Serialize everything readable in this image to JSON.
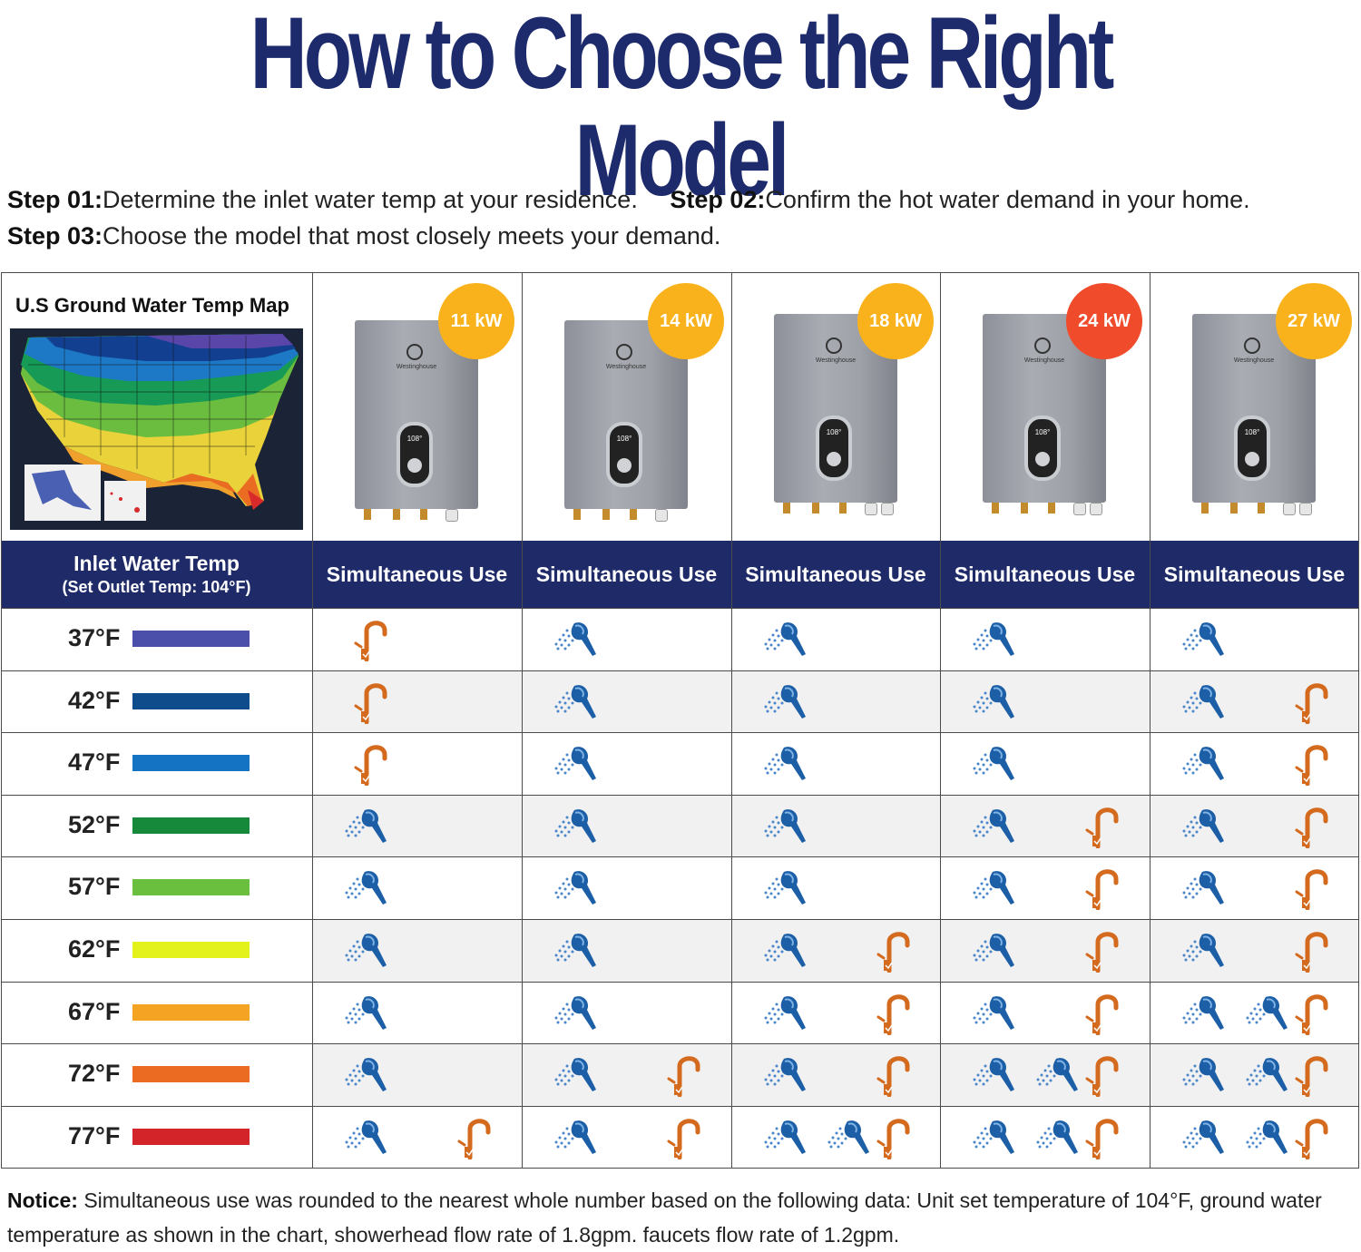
{
  "title": "How to Choose the Right Model",
  "steps": {
    "step1_label": "Step  01:",
    "step1_text": "Determine the inlet water temp at your residence.",
    "step2_label": "Step 02:",
    "step2_text": "Confirm the hot water demand in your home.",
    "step3_label": "Step 03:",
    "step3_text": "Choose the model that most closely meets your demand."
  },
  "map": {
    "heading": "U.S Ground Water Temp Map"
  },
  "header": {
    "inlet_label": "Inlet Water Temp",
    "inlet_sub": "(Set Outlet Temp: 104°F)",
    "use_label": "Simultaneous Use"
  },
  "models": [
    {
      "label": "11 kW",
      "color": "#f9b21b",
      "brand": "Westinghouse",
      "display": "108°"
    },
    {
      "label": "14 kW",
      "color": "#f9b21b",
      "brand": "Westinghouse",
      "display": "108°"
    },
    {
      "label": "18 kW",
      "color": "#f9b21b",
      "brand": "Westinghouse",
      "display": "108°"
    },
    {
      "label": "24 kW",
      "color": "#f04b2a",
      "brand": "Westinghouse",
      "display": "108°"
    },
    {
      "label": "27 kW",
      "color": "#f9b21b",
      "brand": "Westinghouse",
      "display": "108°"
    }
  ],
  "rows": [
    {
      "temp": "37°F",
      "color": "#4b4faa",
      "uses": [
        [
          "faucet"
        ],
        [
          "shower"
        ],
        [
          "shower"
        ],
        [
          "shower"
        ],
        [
          "shower"
        ]
      ]
    },
    {
      "temp": "42°F",
      "color": "#0e4c8c",
      "uses": [
        [
          "faucet"
        ],
        [
          "shower"
        ],
        [
          "shower"
        ],
        [
          "shower"
        ],
        [
          "shower",
          "faucet"
        ]
      ]
    },
    {
      "temp": "47°F",
      "color": "#1473c3",
      "uses": [
        [
          "faucet"
        ],
        [
          "shower"
        ],
        [
          "shower"
        ],
        [
          "shower"
        ],
        [
          "shower",
          "faucet"
        ]
      ]
    },
    {
      "temp": "52°F",
      "color": "#168a3a",
      "uses": [
        [
          "shower"
        ],
        [
          "shower"
        ],
        [
          "shower"
        ],
        [
          "shower",
          "faucet"
        ],
        [
          "shower",
          "faucet"
        ]
      ]
    },
    {
      "temp": "57°F",
      "color": "#6abf3f",
      "uses": [
        [
          "shower"
        ],
        [
          "shower"
        ],
        [
          "shower"
        ],
        [
          "shower",
          "faucet"
        ],
        [
          "shower",
          "faucet"
        ]
      ]
    },
    {
      "temp": "62°F",
      "color": "#e3f21a",
      "uses": [
        [
          "shower"
        ],
        [
          "shower"
        ],
        [
          "shower",
          "faucet"
        ],
        [
          "shower",
          "faucet"
        ],
        [
          "shower",
          "faucet"
        ]
      ]
    },
    {
      "temp": "67°F",
      "color": "#f5a323",
      "uses": [
        [
          "shower"
        ],
        [
          "shower"
        ],
        [
          "shower",
          "faucet"
        ],
        [
          "shower",
          "faucet"
        ],
        [
          "shower",
          "shower",
          "faucet"
        ]
      ]
    },
    {
      "temp": "72°F",
      "color": "#ec6b23",
      "uses": [
        [
          "shower"
        ],
        [
          "shower",
          "faucet"
        ],
        [
          "shower",
          "faucet"
        ],
        [
          "shower",
          "shower",
          "faucet"
        ],
        [
          "shower",
          "shower",
          "faucet"
        ]
      ]
    },
    {
      "temp": "77°F",
      "color": "#d3242a",
      "uses": [
        [
          "shower",
          "faucet"
        ],
        [
          "shower",
          "faucet"
        ],
        [
          "shower",
          "shower",
          "faucet"
        ],
        [
          "shower",
          "shower",
          "faucet"
        ],
        [
          "shower",
          "shower",
          "faucet"
        ]
      ]
    }
  ],
  "notice": {
    "label": "Notice:",
    "text": "Simultaneous use was rounded to the nearest whole number based on the following data: Unit set temperature of 104°F, ground water temperature as shown in the chart, showerhead flow rate of 1.8gpm. faucets flow rate of 1.2gpm."
  }
}
